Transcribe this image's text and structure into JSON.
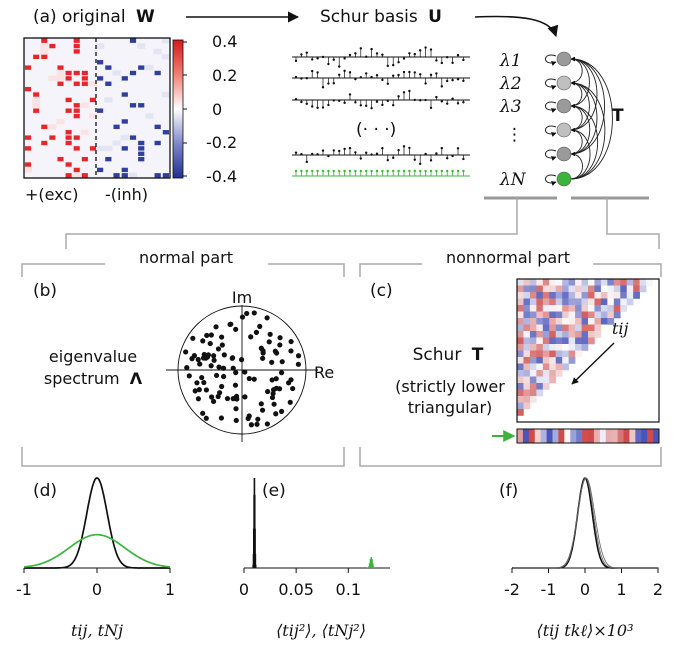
{
  "panel_a": {
    "label": "(a)",
    "title_prefix": "original",
    "title_symbol": "W",
    "colorbar_ticks": [
      "0.4",
      "0.2",
      "0",
      "-0.2",
      "-0.4"
    ],
    "exc_label": "+(exc)",
    "inh_label": "-(inh)",
    "schur_basis_prefix": "Schur basis",
    "schur_basis_symbol": "U",
    "ellipsis": "(· · ·)",
    "lambda_labels": [
      "λ1",
      "λ2",
      "λ3",
      "⋮",
      "λN"
    ],
    "T_label": "T",
    "colors": {
      "exc": "#e8262a",
      "inh": "#2e3f9e",
      "green": "#3cb43c",
      "node_gray": "#9a9a9a"
    }
  },
  "split": {
    "normal_part": "normal part",
    "nonnormal_part": "nonnormal part"
  },
  "panel_b": {
    "label": "(b)",
    "im_label": "Im",
    "re_label": "Re",
    "eigen_line1": "eigenvalue",
    "eigen_line2": "spectrum",
    "eigen_symbol": "Λ"
  },
  "panel_c": {
    "label": "(c)",
    "schur_prefix": "Schur",
    "schur_symbol": "T",
    "paren_line1": "(strictly lower",
    "paren_line2": "triangular)",
    "tij_label": "tij"
  },
  "chart_data": [
    {
      "type": "line",
      "panel": "(d)",
      "xlabel": "tij, tNj",
      "xlim": [
        -1,
        1
      ],
      "xticks": [
        "-1",
        "0",
        "1"
      ],
      "series": [
        {
          "name": "tij",
          "kind": "gaussian",
          "mean": 0,
          "sd": 0.14,
          "peak": 1.0,
          "color": "#111111"
        },
        {
          "name": "tNj",
          "kind": "gaussian",
          "mean": 0,
          "sd": 0.38,
          "peak": 0.37,
          "color": "#3cb43c"
        }
      ]
    },
    {
      "type": "bar",
      "panel": "(e)",
      "xlabel": "⟨tij²⟩, ⟨tNj²⟩",
      "xlim": [
        0,
        0.14
      ],
      "xticks": [
        "0",
        "0.05",
        "0.1"
      ],
      "series": [
        {
          "name": "⟨tij²⟩",
          "center": 0.01,
          "width": 0.0012,
          "peak": 1.0,
          "color": "#111111"
        },
        {
          "name": "⟨tNj²⟩",
          "center": 0.122,
          "width": 0.003,
          "peak": 0.12,
          "color": "#3cb43c"
        }
      ]
    },
    {
      "type": "line",
      "panel": "(f)",
      "xlabel": "⟨tij tkℓ⟩×10³",
      "xlim": [
        -2,
        2
      ],
      "xticks": [
        "-2",
        "-1",
        "0",
        "1",
        "2"
      ],
      "series": [
        {
          "name": "⟨tij tkℓ⟩",
          "kind": "gaussian",
          "mean": 0,
          "sd": 0.2,
          "peak": 1.0,
          "color": "#111111"
        }
      ]
    }
  ]
}
